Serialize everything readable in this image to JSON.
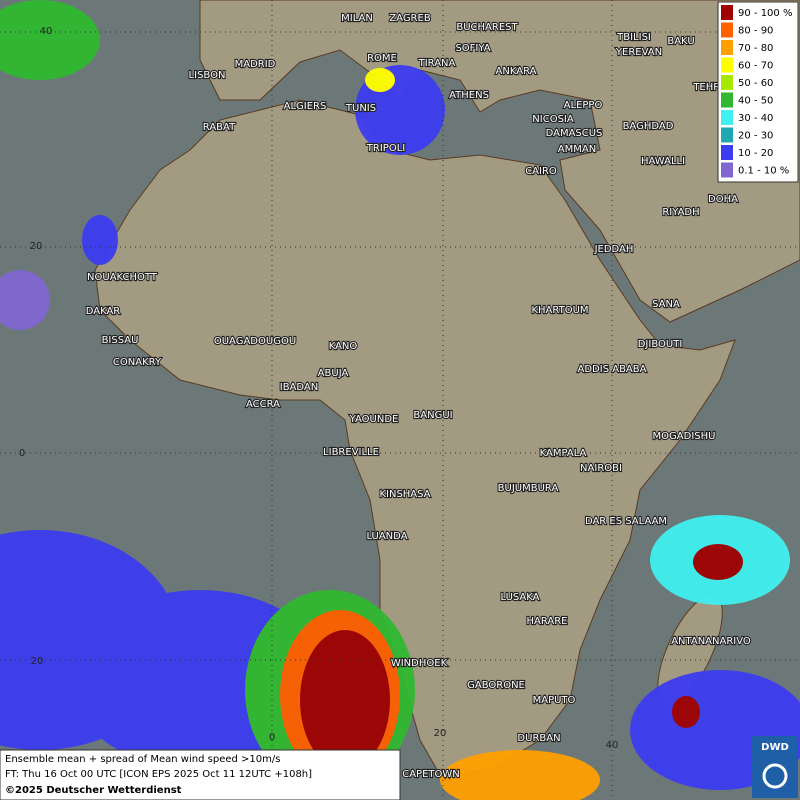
{
  "legend": [
    {
      "label": "90 - 100 %",
      "color": "#a00000"
    },
    {
      "label": "80 - 90",
      "color": "#ff6000"
    },
    {
      "label": "70 - 80",
      "color": "#ffa000"
    },
    {
      "label": "60 - 70",
      "color": "#ffff00"
    },
    {
      "label": "50 - 60",
      "color": "#a8e800"
    },
    {
      "label": "40 - 50",
      "color": "#30b830"
    },
    {
      "label": "30 - 40",
      "color": "#40f0f0"
    },
    {
      "label": "20 - 30",
      "color": "#20a8b0"
    },
    {
      "label": "10 - 20",
      "color": "#3c3cf0"
    },
    {
      "label": "0.1 - 10 %",
      "color": "#8068d0"
    }
  ],
  "cities": [
    "MILAN",
    "ZAGREB",
    "BUCHAREST",
    "LISBON",
    "MADRID",
    "ROME",
    "SOFIYA",
    "TIRANA",
    "ANKARA",
    "YEREVAN",
    "TBILISI",
    "BAKU",
    "TEHRA",
    "ALGIERS",
    "TUNIS",
    "ATHENS",
    "RABAT",
    "ALEPPO",
    "NICOSIA",
    "BAGHDAD",
    "DAMASCUS",
    "TRIPOLI",
    "AMMAN",
    "CAIRO",
    "HAWALLI",
    "DOHA",
    "RIYADH",
    "JEDDAH",
    "NOUAKCHOTT",
    "DAKAR",
    "KHARTOUM",
    "SANA",
    "BISSAU",
    "OUAGADOUGOU",
    "KANO",
    "DJIBOUTI",
    "CONAKRY",
    "ABUJA",
    "ADDIS ABABA",
    "IBADAN",
    "ACCRA",
    "YAOUNDE",
    "BANGUI",
    "MOGADISHU",
    "LIBREVILLE",
    "KAMPALA",
    "NAIROBI",
    "KINSHASA",
    "BUJUMBURA",
    "DAR ES SALAAM",
    "LUANDA",
    "LUSAKA",
    "HARARE",
    "ANTANANARIVO",
    "WINDHOEK",
    "GABORONE",
    "MAPUTO",
    "DURBAN",
    "CAPETOWN"
  ],
  "grid_labels": [
    "40",
    "20",
    "0",
    "20",
    "0",
    "20",
    "40"
  ],
  "footer": [
    "Ensemble mean + spread of Mean wind speed >10m/s",
    "FT: Thu 16 Oct 00 UTC [ICON EPS 2025 Oct 11 12UTC +108h]",
    "©2025 Deutscher Wetterdienst"
  ],
  "logo": "DWD"
}
